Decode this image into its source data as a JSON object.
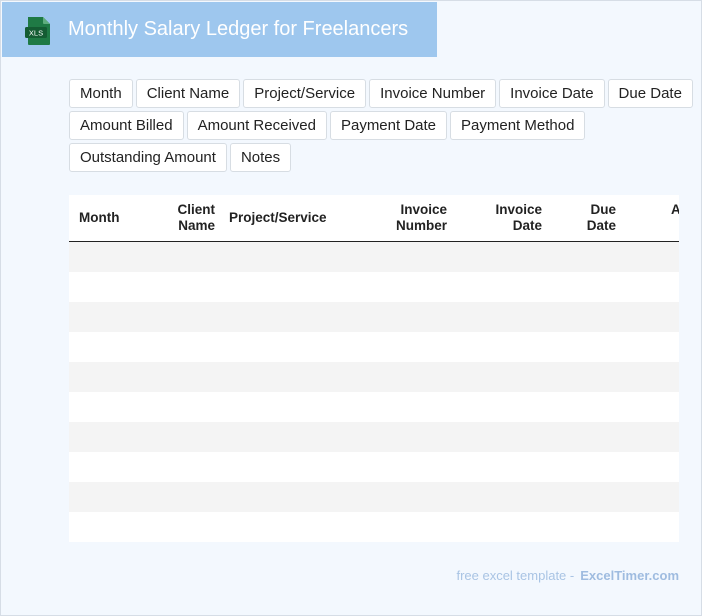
{
  "header": {
    "title": "Monthly Salary Ledger for Freelancers",
    "icon": "xls-file-icon",
    "icon_text": "XLS",
    "accent": "#9ec7ee"
  },
  "chips": [
    "Month",
    "Client Name",
    "Project/Service",
    "Invoice Number",
    "Invoice Date",
    "Due Date",
    "Amount Billed",
    "Amount Received",
    "Payment Date",
    "Payment Method",
    "Outstanding Amount",
    "Notes"
  ],
  "table": {
    "columns": [
      {
        "label": "Month"
      },
      {
        "label": "Client Name"
      },
      {
        "label": "Project/Service"
      },
      {
        "label": "Invoice Number"
      },
      {
        "label": "Invoice Date"
      },
      {
        "label": "Due Date"
      },
      {
        "label": "A"
      }
    ],
    "rows": [
      [],
      [],
      [],
      [],
      [],
      [],
      [],
      [],
      [],
      []
    ]
  },
  "footer": {
    "prefix": "free excel template -",
    "brand": "ExcelTimer.com"
  }
}
